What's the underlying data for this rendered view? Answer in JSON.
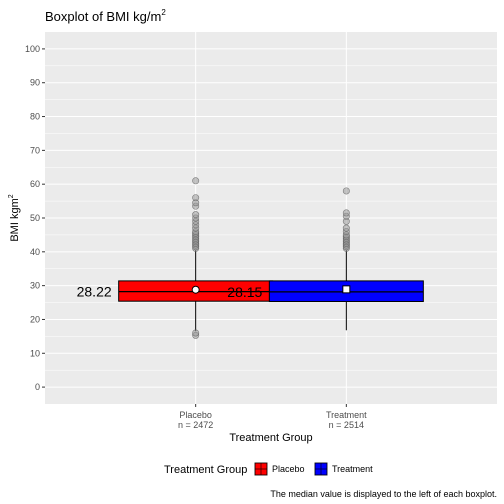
{
  "chart_data": {
    "type": "boxplot",
    "title": "Boxplot of BMI kg/m",
    "title_superscript": "2",
    "xlabel": "Treatment Group",
    "ylabel": "BMI kgm",
    "ylabel_superscript": "2",
    "ylim": [
      -5,
      105
    ],
    "yticks": [
      0,
      10,
      20,
      30,
      40,
      50,
      60,
      70,
      80,
      90,
      100
    ],
    "grid": true,
    "legend_position": "bottom",
    "legend_title": "Treatment Group",
    "caption": "The median value is displayed to the left of each boxplot.",
    "groups": [
      {
        "name": "Placebo",
        "n_label": "n = 2472",
        "color": "#ff0000",
        "q1": 25.4,
        "median": 28.22,
        "q3": 31.4,
        "mean": 28.8,
        "whisker_low": 16.5,
        "whisker_high": 40.5,
        "median_label": "28.22",
        "outliers": [
          15.3,
          16.0,
          41.0,
          41.5,
          42.0,
          42.5,
          43.0,
          43.5,
          44.0,
          44.5,
          45.0,
          45.5,
          46.0,
          47.0,
          48.0,
          49.0,
          50.0,
          51.0,
          53.5,
          54.5,
          56.0,
          61.0
        ]
      },
      {
        "name": "Treatment",
        "n_label": "n = 2514",
        "color": "#0000ff",
        "q1": 25.3,
        "median": 28.15,
        "q3": 31.4,
        "mean": 28.9,
        "whisker_low": 16.8,
        "whisker_high": 40.5,
        "median_label": "28.15",
        "outliers": [
          41.0,
          41.5,
          42.0,
          42.5,
          43.0,
          43.5,
          44.0,
          44.5,
          45.0,
          46.0,
          47.0,
          49.0,
          50.5,
          51.5,
          58.0
        ]
      }
    ]
  }
}
